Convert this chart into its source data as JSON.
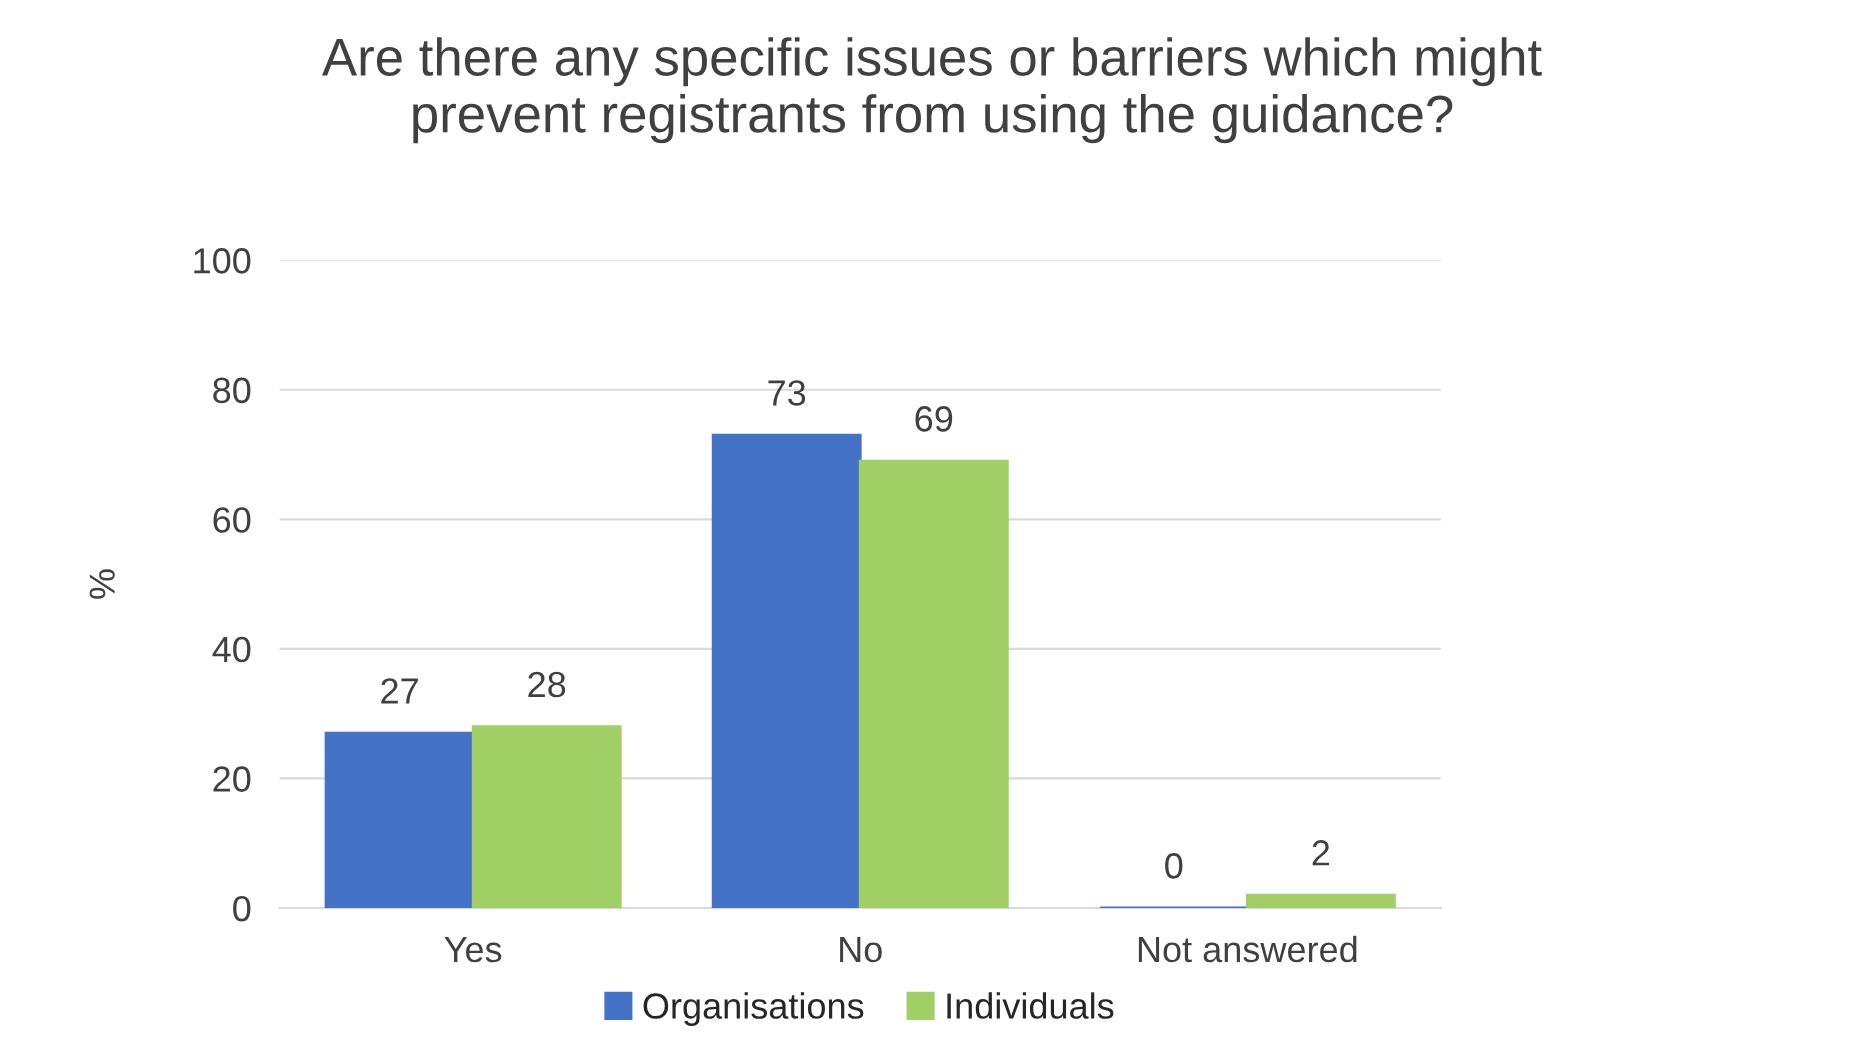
{
  "chart_data": {
    "type": "bar",
    "title": "Are there any specific issues or barriers which might\nprevent registrants from using the guidance?",
    "ylabel": "%",
    "categories": [
      "Yes",
      "No",
      "Not answered"
    ],
    "series": [
      {
        "name": "Organisations",
        "color": "#4472c4",
        "values": [
          27,
          73,
          0
        ]
      },
      {
        "name": "Individuals",
        "color": "#a0cf65",
        "values": [
          28,
          69,
          2
        ]
      }
    ],
    "ylim": [
      0,
      100
    ],
    "yticks": [
      0,
      20,
      40,
      60,
      80,
      100
    ],
    "grid": "y",
    "legend": "bottom",
    "data_labels": true
  }
}
